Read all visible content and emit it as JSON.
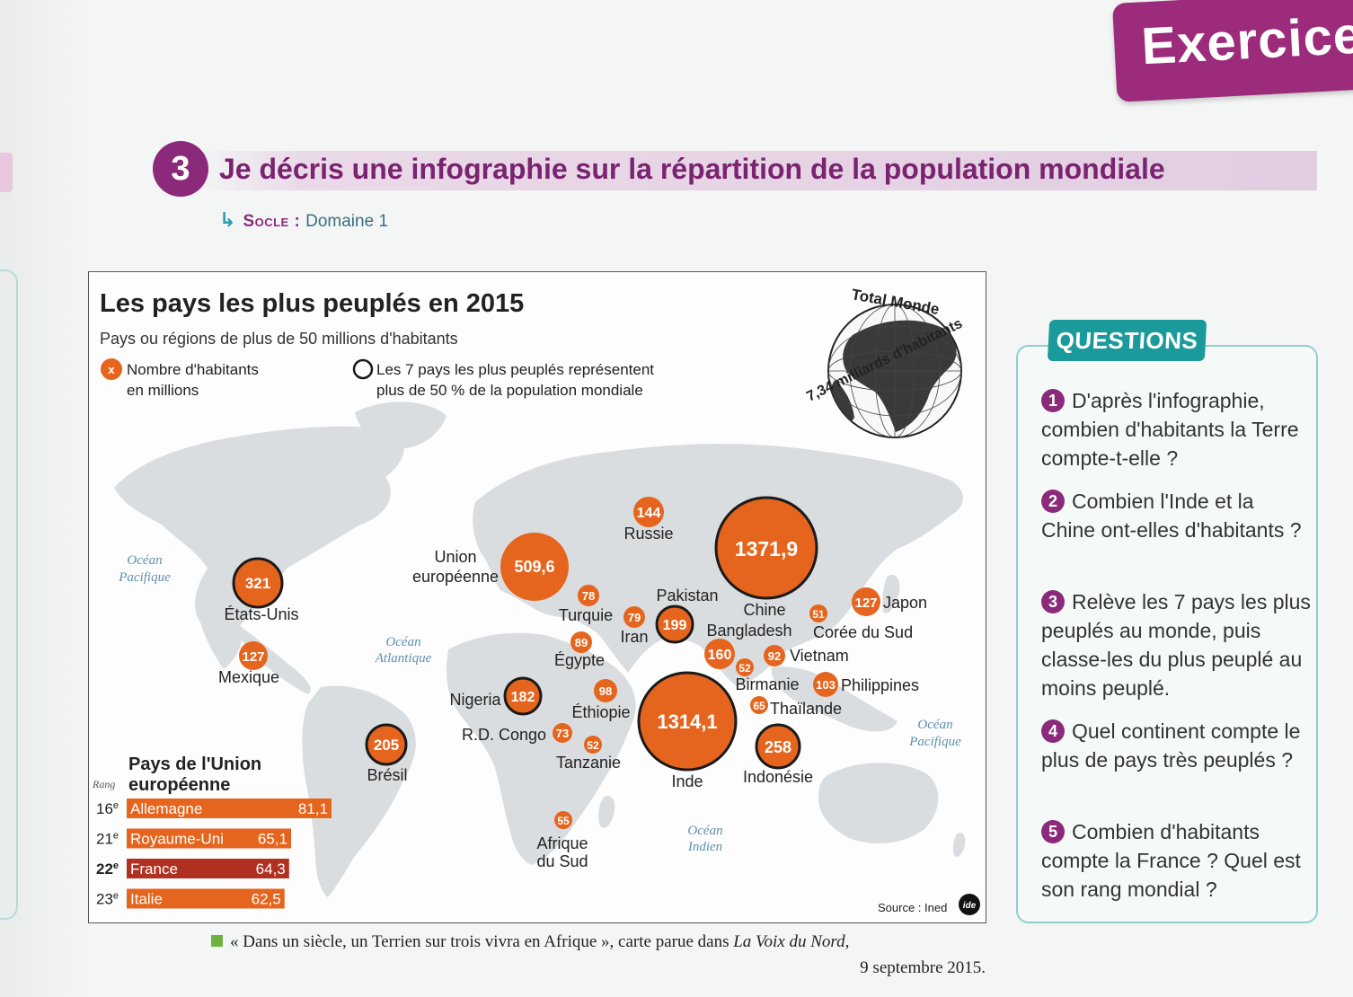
{
  "page": {
    "exercise_tab": "Exercice",
    "exercise_number": "3",
    "exercise_title": "Je décris une infographie sur la répartition de la population mondiale",
    "socle_label": "Socle",
    "socle_separator": " : ",
    "socle_value": "Domaine 1"
  },
  "infographic": {
    "title": "Les pays les plus peuplés en 2015",
    "subtitle": "Pays ou régions de plus de 50 millions d'habitants",
    "legend_marker": "x",
    "legend_population_l1": "Nombre d'habitants",
    "legend_population_l2": "en millions",
    "legend_top7_l1": "Les 7 pays les plus peuplés représentent",
    "legend_top7_l2": "plus de 50 % de la population mondiale",
    "globe_label_top": "Total Monde",
    "globe_label_bottom": "7,34 milliards d'habitants",
    "source": "Source : Ined",
    "source_logo": "ide",
    "colors": {
      "bubble": "#e5651e",
      "bubble_text": "#ffffff",
      "top7_ring": "#1a1a1a",
      "land": "#d9dcdd",
      "ocean_text": "#5d8fb0",
      "eu_bar": "#e5651e",
      "france_bar": "#b03022"
    }
  },
  "oceans": [
    {
      "l1": "Océan",
      "l2": "Pacifique"
    },
    {
      "l1": "Océan",
      "l2": "Atlantique"
    },
    {
      "l1": "Océan",
      "l2": "Pacifique"
    },
    {
      "l1": "Océan",
      "l2": "Indien"
    }
  ],
  "countries": [
    {
      "name": "Russie",
      "value": "144",
      "top7": false
    },
    {
      "name": "Chine",
      "value": "1371,9",
      "top7": true
    },
    {
      "name": "Union européenne",
      "name_l1": "Union",
      "name_l2": "européenne",
      "value": "509,6",
      "top7": false
    },
    {
      "name": "États-Unis",
      "value": "321",
      "top7": true
    },
    {
      "name": "Mexique",
      "value": "127",
      "top7": false
    },
    {
      "name": "Turquie",
      "value": "78",
      "top7": false
    },
    {
      "name": "Iran",
      "value": "79",
      "top7": false
    },
    {
      "name": "Pakistan",
      "value": "199",
      "top7": true
    },
    {
      "name": "Bangladesh",
      "value": "160",
      "top7": false
    },
    {
      "name": "Japon",
      "value": "127",
      "top7": false
    },
    {
      "name": "Corée du Sud",
      "value": "51",
      "top7": false
    },
    {
      "name": "Égypte",
      "value": "89",
      "top7": false
    },
    {
      "name": "Vietnam",
      "value": "92",
      "top7": false
    },
    {
      "name": "Birmanie",
      "value": "52",
      "top7": false
    },
    {
      "name": "Philippines",
      "value": "103",
      "top7": false
    },
    {
      "name": "Nigeria",
      "value": "182",
      "top7": true
    },
    {
      "name": "Éthiopie",
      "value": "98",
      "top7": false
    },
    {
      "name": "Thaïlande",
      "value": "65",
      "top7": false
    },
    {
      "name": "R.D. Congo",
      "value": "73",
      "top7": false
    },
    {
      "name": "Tanzanie",
      "value": "52",
      "top7": false
    },
    {
      "name": "Inde",
      "value": "1314,1",
      "top7": true
    },
    {
      "name": "Indonésie",
      "value": "258",
      "top7": true
    },
    {
      "name": "Brésil",
      "value": "205",
      "top7": true
    },
    {
      "name": "Afrique du Sud",
      "name_l1": "Afrique",
      "name_l2": "du Sud",
      "value": "55",
      "top7": false
    }
  ],
  "eu_table": {
    "title_l1": "Pays de l'Union",
    "title_l2": "européenne",
    "rank_header": "Rang",
    "rows": [
      {
        "rank": "16",
        "suffix": "e",
        "name": "Allemagne",
        "value": "81,1",
        "num": 81.1,
        "highlight": false
      },
      {
        "rank": "21",
        "suffix": "e",
        "name": "Royaume-Uni",
        "value": "65,1",
        "num": 65.1,
        "highlight": false
      },
      {
        "rank": "22",
        "suffix": "e",
        "name": "France",
        "value": "64,3",
        "num": 64.3,
        "highlight": true
      },
      {
        "rank": "23",
        "suffix": "e",
        "name": "Italie",
        "value": "62,5",
        "num": 62.5,
        "highlight": false
      }
    ]
  },
  "caption": {
    "text": "« Dans un siècle, un Terrien sur trois vivra en Afrique », carte parue dans ",
    "source": "La Voix du Nord",
    "date": "9 septembre 2015."
  },
  "questions": {
    "tag": "QUESTIONS",
    "items": [
      {
        "num": "1",
        "text": "D'après l'infographie, combien d'habitants la Terre compte-t-elle ?"
      },
      {
        "num": "2",
        "text": "Combien l'Inde et la Chine ont-elles d'habitants ?"
      },
      {
        "num": "3",
        "text": "Relève les 7 pays les plus peuplés au monde, puis classe-les du plus peuplé au moins peuplé."
      },
      {
        "num": "4",
        "text": "Quel continent compte le plus de pays très peuplés ?"
      },
      {
        "num": "5",
        "text": "Combien d'habitants compte la France ? Quel est son rang mondial ?"
      }
    ]
  }
}
